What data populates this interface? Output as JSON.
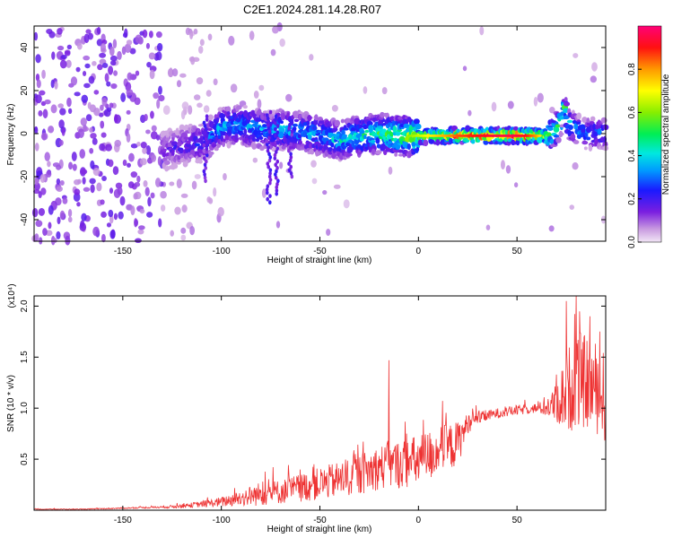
{
  "title": "C2E1.2024.281.14.28.R07",
  "chart_data": [
    {
      "type": "heatmap",
      "xlabel": "Height of straight line (km)",
      "ylabel": "Frequency (Hz)",
      "xlim": [
        -195,
        95
      ],
      "ylim": [
        -50,
        50
      ],
      "xticks": [
        -150,
        -100,
        -50,
        0,
        50
      ],
      "yticks": [
        -40,
        -20,
        0,
        20,
        40
      ],
      "colorbar": {
        "label": "Normalized spectral amplitude",
        "range": [
          0,
          1
        ],
        "ticks": [
          0.0,
          0.2,
          0.4,
          0.6,
          0.8
        ]
      },
      "ridge": {
        "x": [
          -130,
          -120,
          -110,
          -105,
          -100,
          -90,
          -80,
          -75,
          -70,
          -60,
          -50,
          -40,
          -35,
          -30,
          -20,
          -10,
          0,
          10,
          20,
          30,
          40,
          50,
          55,
          60,
          65,
          70,
          72,
          74,
          76,
          80,
          85,
          90,
          95
        ],
        "frequency_hz": [
          -8,
          -6,
          -4,
          -1,
          3,
          4,
          2,
          1,
          2,
          1,
          -1,
          -3,
          -2,
          -1,
          0,
          -1,
          -1,
          -1,
          -1,
          -1,
          -1,
          -1,
          -1,
          -1,
          -1,
          2,
          6,
          12,
          5,
          2,
          0,
          0,
          0
        ],
        "amplitude": [
          0.15,
          0.2,
          0.25,
          0.3,
          0.35,
          0.35,
          0.35,
          0.3,
          0.4,
          0.35,
          0.35,
          0.4,
          0.4,
          0.45,
          0.5,
          0.55,
          0.65,
          0.75,
          0.85,
          0.9,
          0.95,
          0.95,
          0.9,
          0.8,
          0.6,
          0.5,
          0.5,
          0.5,
          0.4,
          0.35,
          0.3,
          0.3,
          0.3
        ]
      }
    },
    {
      "type": "line",
      "xlabel": "Height of straight line (km)",
      "ylabel": "SNR (10 * v/v)",
      "ymultiplier": "(x10⁴)",
      "xlim": [
        -195,
        95
      ],
      "ylim": [
        0,
        2.1
      ],
      "xticks": [
        -150,
        -100,
        -50,
        0,
        50
      ],
      "yticks": [
        0.5,
        1.0,
        1.5,
        2.0
      ],
      "series": [
        {
          "color": "#ee3333",
          "x": [
            -195,
            -170,
            -150,
            -130,
            -120,
            -110,
            -100,
            -90,
            -80,
            -70,
            -60,
            -50,
            -40,
            -30,
            -20,
            -10,
            0,
            10,
            20,
            25,
            30,
            40,
            50,
            60,
            65,
            70,
            75,
            80,
            85,
            90,
            95
          ],
          "y": [
            0.01,
            0.01,
            0.02,
            0.03,
            0.04,
            0.06,
            0.08,
            0.12,
            0.16,
            0.18,
            0.22,
            0.26,
            0.3,
            0.35,
            0.42,
            0.45,
            0.48,
            0.58,
            0.65,
            0.85,
            0.9,
            0.95,
            0.98,
            1.0,
            1.0,
            1.05,
            1.15,
            1.3,
            1.25,
            1.2,
            1.1
          ],
          "spread": [
            0.003,
            0.004,
            0.006,
            0.01,
            0.02,
            0.03,
            0.05,
            0.08,
            0.12,
            0.12,
            0.14,
            0.16,
            0.18,
            0.2,
            0.22,
            0.24,
            0.26,
            0.25,
            0.22,
            0.1,
            0.06,
            0.05,
            0.05,
            0.05,
            0.08,
            0.2,
            0.4,
            0.5,
            0.45,
            0.45,
            0.45
          ],
          "spikes": [
            [
              -79,
              0.28
            ],
            [
              -53,
              0.45
            ],
            [
              -32,
              0.55
            ],
            [
              -15,
              1.47
            ],
            [
              -6,
              0.75
            ],
            [
              11,
              0.65
            ],
            [
              20,
              0.85
            ],
            [
              75,
              2.05
            ],
            [
              80,
              2.1
            ],
            [
              87,
              1.9
            ],
            [
              92,
              1.75
            ]
          ]
        }
      ]
    }
  ]
}
